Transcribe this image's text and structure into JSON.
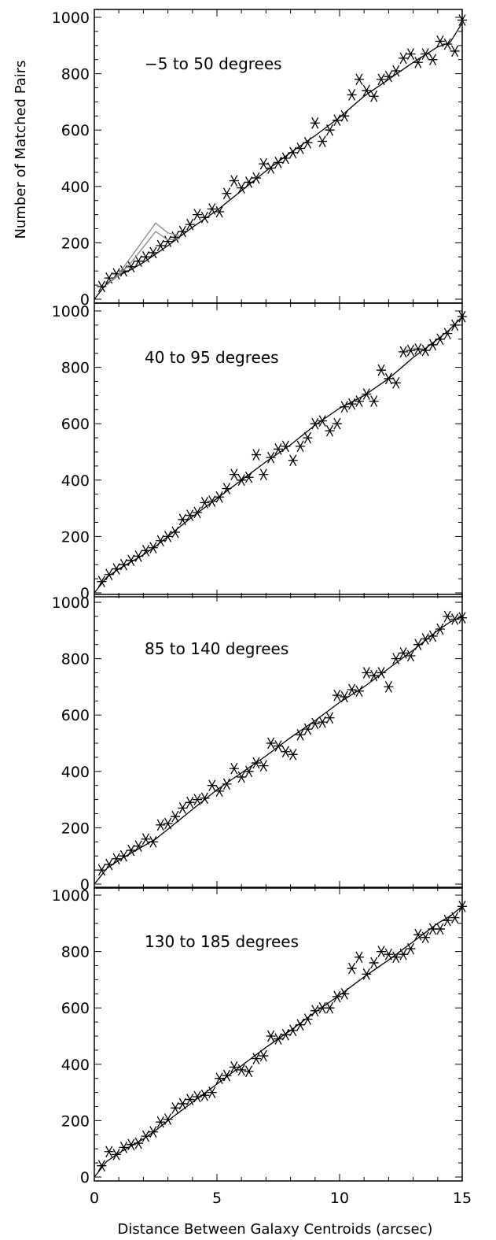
{
  "chart_data": {
    "type": "scatter",
    "xlabel": "Distance Between Galaxy Centroids (arcsec)",
    "ylabel": "Number of Matched Pairs",
    "xlim": [
      0,
      15
    ],
    "x_ticks": [
      "0",
      "5",
      "10",
      "15"
    ],
    "ylim": [
      0,
      1000
    ],
    "y_ticks": [
      "0",
      "200",
      "400",
      "600",
      "800",
      "1000"
    ],
    "panels": [
      {
        "label": "−5 to 50 degrees",
        "series": [
          {
            "style": "asterisk-markers",
            "x": [
              0.3,
              0.6,
              0.9,
              1.2,
              1.5,
              1.8,
              2.1,
              2.4,
              2.7,
              3.0,
              3.3,
              3.6,
              3.9,
              4.2,
              4.5,
              4.8,
              5.1,
              5.4,
              5.7,
              6.0,
              6.3,
              6.6,
              6.9,
              7.2,
              7.5,
              7.8,
              8.1,
              8.4,
              8.7,
              9.0,
              9.3,
              9.6,
              9.9,
              10.2,
              10.5,
              10.8,
              11.1,
              11.4,
              11.7,
              12.0,
              12.3,
              12.6,
              12.9,
              13.2,
              13.5,
              13.8,
              14.1,
              14.4,
              14.7,
              15.0
            ],
            "y": [
              45,
              75,
              90,
              100,
              115,
              135,
              150,
              165,
              190,
              205,
              220,
              240,
              265,
              300,
              290,
              320,
              310,
              375,
              420,
              395,
              415,
              430,
              480,
              465,
              485,
              500,
              520,
              535,
              555,
              625,
              560,
              600,
              635,
              650,
              725,
              780,
              740,
              720,
              780,
              790,
              810,
              855,
              870,
              840,
              870,
              850,
              915,
              905,
              880,
              990
            ]
          },
          {
            "style": "solid-line",
            "color": "#000000",
            "x": [
              0,
              0.5,
              1,
              1.5,
              2,
              2.5,
              3,
              4,
              5,
              6,
              7,
              8,
              9,
              10,
              11,
              12,
              13,
              14,
              14.5,
              15
            ],
            "y": [
              0,
              55,
              85,
              105,
              130,
              160,
              190,
              255,
              315,
              385,
              455,
              520,
              580,
              645,
              720,
              780,
              840,
              895,
              910,
              980
            ]
          },
          {
            "style": "solid-line",
            "color": "#888888",
            "x": [
              0.5,
              1,
              1.5,
              2,
              2.5,
              3,
              3.5
            ],
            "y": [
              50,
              90,
              150,
              210,
              270,
              235,
              225
            ]
          },
          {
            "style": "solid-line",
            "color": "#888888",
            "x": [
              0.5,
              1,
              1.5,
              2,
              2.5,
              3,
              3.5
            ],
            "y": [
              50,
              85,
              130,
              185,
              240,
              210,
              215
            ]
          }
        ]
      },
      {
        "label": "40 to 95 degrees",
        "series": [
          {
            "style": "asterisk-markers",
            "x": [
              0.3,
              0.6,
              0.9,
              1.2,
              1.5,
              1.8,
              2.1,
              2.4,
              2.7,
              3.0,
              3.3,
              3.6,
              3.9,
              4.2,
              4.5,
              4.8,
              5.1,
              5.4,
              5.7,
              6.0,
              6.3,
              6.6,
              6.9,
              7.2,
              7.5,
              7.8,
              8.1,
              8.4,
              8.7,
              9.0,
              9.3,
              9.6,
              9.9,
              10.2,
              10.5,
              10.8,
              11.1,
              11.4,
              11.7,
              12.0,
              12.3,
              12.6,
              12.9,
              13.2,
              13.5,
              13.8,
              14.1,
              14.4,
              14.7,
              15.0
            ],
            "y": [
              40,
              65,
              85,
              100,
              115,
              130,
              150,
              160,
              185,
              200,
              215,
              260,
              275,
              285,
              320,
              325,
              340,
              370,
              420,
              400,
              410,
              490,
              420,
              480,
              510,
              520,
              470,
              520,
              550,
              600,
              610,
              575,
              600,
              660,
              670,
              680,
              705,
              680,
              790,
              760,
              745,
              855,
              860,
              865,
              860,
              880,
              900,
              920,
              950,
              980
            ]
          },
          {
            "style": "solid-line",
            "color": "#000000",
            "x": [
              0,
              0.5,
              1,
              1.5,
              2,
              2.5,
              3,
              4,
              5,
              6,
              7,
              8,
              9,
              10,
              11,
              12,
              13,
              14,
              14.5,
              15
            ],
            "y": [
              0,
              55,
              85,
              110,
              135,
              165,
              200,
              270,
              335,
              400,
              465,
              525,
              595,
              655,
              700,
              760,
              835,
              900,
              935,
              980
            ]
          }
        ]
      },
      {
        "label": "85 to 140 degrees",
        "series": [
          {
            "style": "asterisk-markers",
            "x": [
              0.3,
              0.6,
              0.9,
              1.2,
              1.5,
              1.8,
              2.1,
              2.4,
              2.7,
              3.0,
              3.3,
              3.6,
              3.9,
              4.2,
              4.5,
              4.8,
              5.1,
              5.4,
              5.7,
              6.0,
              6.3,
              6.6,
              6.9,
              7.2,
              7.5,
              7.8,
              8.1,
              8.4,
              8.7,
              9.0,
              9.3,
              9.6,
              9.9,
              10.2,
              10.5,
              10.8,
              11.1,
              11.4,
              11.7,
              12.0,
              12.3,
              12.6,
              12.9,
              13.2,
              13.5,
              13.8,
              14.1,
              14.4,
              14.7,
              15.0
            ],
            "y": [
              50,
              70,
              90,
              100,
              120,
              135,
              160,
              150,
              210,
              215,
              240,
              270,
              290,
              300,
              305,
              350,
              330,
              355,
              410,
              380,
              400,
              430,
              420,
              500,
              490,
              470,
              460,
              530,
              550,
              570,
              575,
              590,
              670,
              665,
              690,
              685,
              750,
              740,
              750,
              700,
              800,
              820,
              810,
              850,
              870,
              880,
              905,
              950,
              940,
              945
            ]
          },
          {
            "style": "solid-line",
            "color": "#000000",
            "x": [
              0,
              0.5,
              1,
              1.5,
              2,
              2.5,
              3,
              4,
              5,
              6,
              7,
              8,
              9,
              10,
              11,
              12,
              13,
              14,
              14.5,
              15
            ],
            "y": [
              0,
              55,
              85,
              110,
              135,
              160,
              195,
              265,
              335,
              395,
              455,
              520,
              580,
              645,
              700,
              765,
              830,
              900,
              930,
              950
            ]
          }
        ]
      },
      {
        "label": "130 to 185 degrees",
        "series": [
          {
            "style": "asterisk-markers",
            "x": [
              0.3,
              0.6,
              0.9,
              1.2,
              1.5,
              1.8,
              2.1,
              2.4,
              2.7,
              3.0,
              3.3,
              3.6,
              3.9,
              4.2,
              4.5,
              4.8,
              5.1,
              5.4,
              5.7,
              6.0,
              6.3,
              6.6,
              6.9,
              7.2,
              7.5,
              7.8,
              8.1,
              8.4,
              8.7,
              9.0,
              9.3,
              9.6,
              9.9,
              10.2,
              10.5,
              10.8,
              11.1,
              11.4,
              11.7,
              12.0,
              12.3,
              12.6,
              12.9,
              13.2,
              13.5,
              13.8,
              14.1,
              14.4,
              14.7,
              15.0
            ],
            "y": [
              40,
              90,
              80,
              105,
              115,
              120,
              145,
              160,
              195,
              205,
              245,
              260,
              275,
              285,
              290,
              300,
              350,
              360,
              390,
              380,
              375,
              420,
              430,
              500,
              490,
              505,
              520,
              540,
              560,
              590,
              600,
              600,
              640,
              650,
              740,
              780,
              720,
              760,
              800,
              790,
              780,
              790,
              810,
              860,
              850,
              880,
              880,
              910,
              920,
              960
            ]
          },
          {
            "style": "solid-line",
            "color": "#000000",
            "x": [
              0,
              0.5,
              1,
              1.5,
              2,
              2.5,
              3,
              4,
              5,
              6,
              7,
              8,
              9,
              10,
              11,
              12,
              13,
              14,
              14.5,
              15
            ],
            "y": [
              0,
              55,
              85,
              110,
              135,
              165,
              200,
              265,
              330,
              395,
              460,
              520,
              585,
              645,
              710,
              770,
              835,
              900,
              925,
              960
            ]
          }
        ]
      }
    ]
  }
}
